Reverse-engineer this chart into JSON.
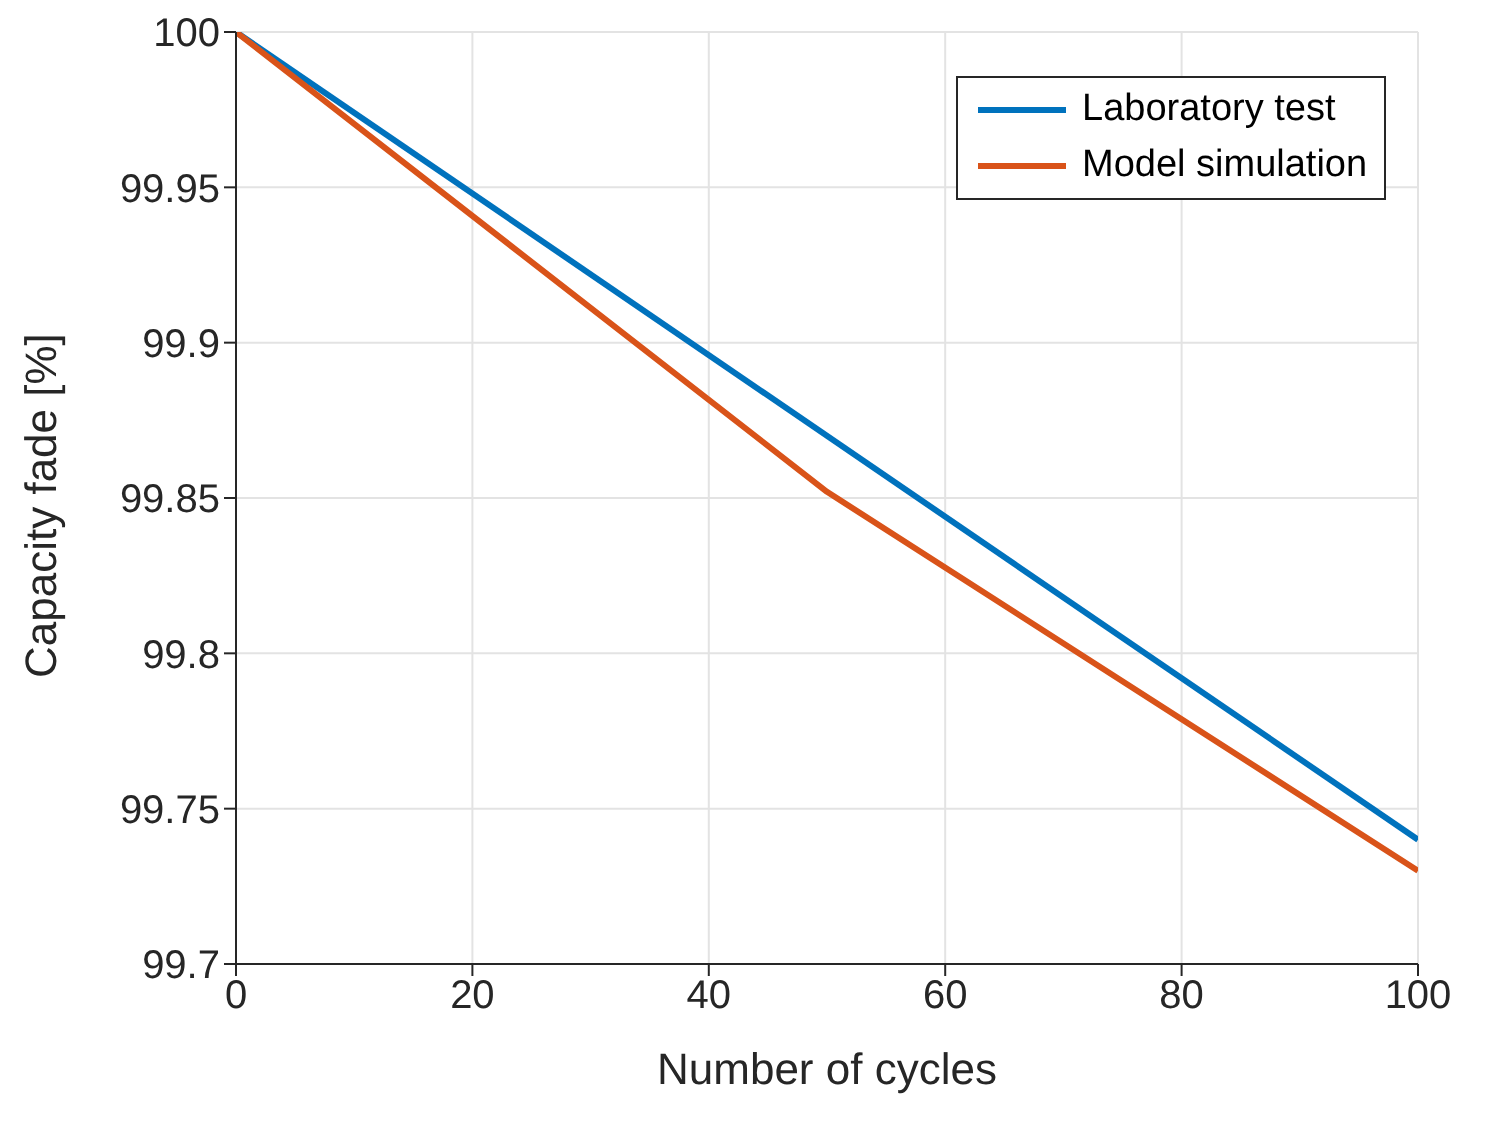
{
  "chart_data": {
    "type": "line",
    "xlabel": "Number of cycles",
    "ylabel": "Capacity fade [%]",
    "series": [
      {
        "name": "Laboratory test",
        "color": "#0072bd",
        "x": [
          0,
          100
        ],
        "values": [
          100,
          99.74
        ]
      },
      {
        "name": "Model simulation",
        "color": "#d95319",
        "x": [
          0,
          50,
          100
        ],
        "values": [
          100,
          99.852,
          99.73
        ]
      }
    ],
    "xlim": [
      0,
      100
    ],
    "xticks": [
      0,
      20,
      40,
      60,
      80,
      100
    ],
    "ylim": [
      99.7,
      100
    ],
    "yticks": [
      99.7,
      99.75,
      99.8,
      99.85,
      99.9,
      99.95,
      100
    ],
    "grid": true,
    "legend": "top right",
    "marker": "none",
    "line_style": "solid"
  }
}
